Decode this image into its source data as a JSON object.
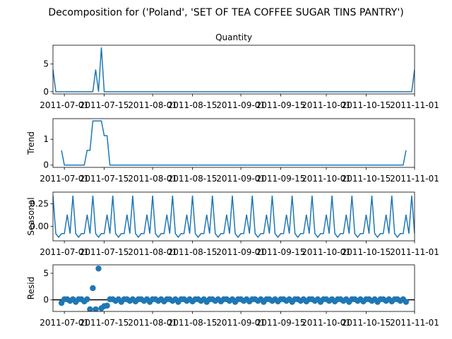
{
  "figure": {
    "suptitle": "Decomposition for ('Poland', 'SET OF TEA COFFEE SUGAR TINS PANTRY')"
  },
  "chart_data": [
    {
      "type": "line",
      "title": "Quantity",
      "ylabel": "",
      "color": "#1f77b4",
      "xlim": [
        "2011-06-27",
        "2011-11-01"
      ],
      "ylim": [
        -0.4,
        8.4
      ],
      "yticks": [
        0,
        5
      ],
      "x_tick_dates": [
        "2011-07-01",
        "2011-07-15",
        "2011-08-01",
        "2011-08-15",
        "2011-09-01",
        "2011-09-15",
        "2011-10-01",
        "2011-10-15",
        "2011-11-01"
      ],
      "x_tick_labels": [
        "2011-07-01",
        "2011-07-15",
        "2011-08-01",
        "2011-08-15",
        "2011-09-01",
        "2011-09-15",
        "2011-10-01",
        "2011-10-15",
        "2011-11-01"
      ],
      "points": [
        [
          "2011-06-27",
          4
        ],
        [
          "2011-06-28",
          0
        ],
        [
          "2011-07-11",
          0
        ],
        [
          "2011-07-12",
          4
        ],
        [
          "2011-07-13",
          0
        ],
        [
          "2011-07-14",
          8
        ],
        [
          "2011-07-15",
          0
        ],
        [
          "2011-10-31",
          0
        ],
        [
          "2011-11-01",
          4
        ]
      ]
    },
    {
      "type": "line",
      "title": "",
      "ylabel": "Trend",
      "color": "#1f77b4",
      "xlim": [
        "2011-06-27",
        "2011-11-01"
      ],
      "ylim": [
        -0.09,
        1.8
      ],
      "yticks": [
        0,
        1
      ],
      "x_tick_dates": [
        "2011-07-01",
        "2011-07-15",
        "2011-08-01",
        "2011-08-15",
        "2011-09-01",
        "2011-09-15",
        "2011-10-01",
        "2011-10-15",
        "2011-11-01"
      ],
      "x_tick_labels": [
        "2011-07-01",
        "2011-07-15",
        "2011-08-01",
        "2011-08-15",
        "2011-09-01",
        "2011-09-15",
        "2011-10-01",
        "2011-10-15",
        "2011-11-01"
      ],
      "points": [
        [
          "2011-06-30",
          0.57
        ],
        [
          "2011-07-01",
          0
        ],
        [
          "2011-07-08",
          0
        ],
        [
          "2011-07-09",
          0.57
        ],
        [
          "2011-07-10",
          0.57
        ],
        [
          "2011-07-11",
          1.71
        ],
        [
          "2011-07-14",
          1.71
        ],
        [
          "2011-07-15",
          1.14
        ],
        [
          "2011-07-16",
          1.14
        ],
        [
          "2011-07-17",
          0
        ],
        [
          "2011-10-28",
          0
        ],
        [
          "2011-10-29",
          0.57
        ]
      ]
    },
    {
      "type": "line",
      "title": "",
      "ylabel": "Seasonal",
      "color": "#1f77b4",
      "xlim": [
        "2011-06-27",
        "2011-11-01"
      ],
      "ylim": [
        -0.16,
        0.38
      ],
      "yticks": [
        0.25,
        0.0
      ],
      "ytick_labels": [
        "0.25",
        "0.00"
      ],
      "x_tick_dates": [
        "2011-07-01",
        "2011-07-15",
        "2011-08-01",
        "2011-08-15",
        "2011-09-01",
        "2011-09-15",
        "2011-10-01",
        "2011-10-15",
        "2011-11-01"
      ],
      "x_tick_labels": [
        "2011-07-01",
        "2011-07-15",
        "2011-08-01",
        "2011-08-15",
        "2011-09-01",
        "2011-09-15",
        "2011-10-01",
        "2011-10-15",
        "2011-11-01"
      ],
      "start": "2011-06-27",
      "end": "2011-11-01",
      "weekly_pattern": [
        0.34,
        -0.08,
        -0.12,
        -0.08,
        -0.08,
        0.13,
        -0.08
      ]
    },
    {
      "type": "scatter",
      "title": "",
      "ylabel": "Resid",
      "color": "#1f77b4",
      "xlim": [
        "2011-06-27",
        "2011-11-01"
      ],
      "ylim": [
        -2.2,
        6.6
      ],
      "yticks": [
        0,
        5
      ],
      "baseline": 0,
      "x_tick_dates": [
        "2011-07-01",
        "2011-07-15",
        "2011-08-01",
        "2011-08-15",
        "2011-09-01",
        "2011-09-15",
        "2011-10-01",
        "2011-10-15",
        "2011-11-01"
      ],
      "x_tick_labels": [
        "2011-07-01",
        "2011-07-15",
        "2011-08-01",
        "2011-08-15",
        "2011-09-01",
        "2011-09-15",
        "2011-10-01",
        "2011-10-15",
        "2011-11-01"
      ],
      "points": [
        [
          "2011-06-30",
          -0.6
        ],
        [
          "2011-07-01",
          0.1
        ],
        [
          "2011-07-02",
          0.1
        ],
        [
          "2011-07-03",
          -0.2
        ],
        [
          "2011-07-04",
          0.1
        ],
        [
          "2011-07-05",
          -0.4
        ],
        [
          "2011-07-06",
          0.1
        ],
        [
          "2011-07-07",
          0.1
        ],
        [
          "2011-07-08",
          -0.3
        ],
        [
          "2011-07-09",
          0.1
        ],
        [
          "2011-07-10",
          -1.8
        ],
        [
          "2011-07-11",
          2.2
        ],
        [
          "2011-07-12",
          -1.8
        ],
        [
          "2011-07-13",
          5.9
        ],
        [
          "2011-07-14",
          -1.6
        ],
        [
          "2011-07-15",
          -1.2
        ],
        [
          "2011-07-16",
          -1.1
        ],
        [
          "2011-07-17",
          0.1
        ],
        [
          "2011-07-18",
          0.1
        ],
        [
          "2011-07-19",
          -0.2
        ],
        [
          "2011-07-20",
          0.1
        ],
        [
          "2011-07-21",
          -0.4
        ],
        [
          "2011-07-22",
          0.1
        ],
        [
          "2011-07-23",
          0.1
        ],
        [
          "2011-07-24",
          -0.2
        ],
        [
          "2011-07-25",
          0.1
        ],
        [
          "2011-07-26",
          -0.3
        ],
        [
          "2011-07-27",
          0.1
        ],
        [
          "2011-07-28",
          0.1
        ],
        [
          "2011-07-29",
          -0.2
        ],
        [
          "2011-07-30",
          0.1
        ],
        [
          "2011-07-31",
          -0.4
        ],
        [
          "2011-08-01",
          0.1
        ],
        [
          "2011-08-02",
          0.1
        ],
        [
          "2011-08-03",
          -0.2
        ],
        [
          "2011-08-04",
          0.1
        ],
        [
          "2011-08-05",
          -0.3
        ],
        [
          "2011-08-06",
          0.1
        ],
        [
          "2011-08-07",
          0.1
        ],
        [
          "2011-08-08",
          -0.2
        ],
        [
          "2011-08-09",
          0.1
        ],
        [
          "2011-08-10",
          -0.4
        ],
        [
          "2011-08-11",
          0.1
        ],
        [
          "2011-08-12",
          0.1
        ],
        [
          "2011-08-13",
          -0.2
        ],
        [
          "2011-08-14",
          0.1
        ],
        [
          "2011-08-15",
          -0.3
        ],
        [
          "2011-08-16",
          0.1
        ],
        [
          "2011-08-17",
          0.1
        ],
        [
          "2011-08-18",
          -0.2
        ],
        [
          "2011-08-19",
          0.1
        ],
        [
          "2011-08-20",
          -0.4
        ],
        [
          "2011-08-21",
          0.1
        ],
        [
          "2011-08-22",
          0.1
        ],
        [
          "2011-08-23",
          -0.2
        ],
        [
          "2011-08-24",
          0.1
        ],
        [
          "2011-08-25",
          -0.3
        ],
        [
          "2011-08-26",
          0.1
        ],
        [
          "2011-08-27",
          0.1
        ],
        [
          "2011-08-28",
          -0.2
        ],
        [
          "2011-08-29",
          0.1
        ],
        [
          "2011-08-30",
          -0.4
        ],
        [
          "2011-08-31",
          0.1
        ],
        [
          "2011-09-01",
          0.1
        ],
        [
          "2011-09-02",
          -0.2
        ],
        [
          "2011-09-03",
          0.1
        ],
        [
          "2011-09-04",
          -0.3
        ],
        [
          "2011-09-05",
          0.1
        ],
        [
          "2011-09-06",
          0.1
        ],
        [
          "2011-09-07",
          -0.2
        ],
        [
          "2011-09-08",
          0.1
        ],
        [
          "2011-09-09",
          -0.4
        ],
        [
          "2011-09-10",
          0.1
        ],
        [
          "2011-09-11",
          0.1
        ],
        [
          "2011-09-12",
          -0.2
        ],
        [
          "2011-09-13",
          0.1
        ],
        [
          "2011-09-14",
          -0.3
        ],
        [
          "2011-09-15",
          0.1
        ],
        [
          "2011-09-16",
          0.1
        ],
        [
          "2011-09-17",
          -0.2
        ],
        [
          "2011-09-18",
          0.1
        ],
        [
          "2011-09-19",
          -0.4
        ],
        [
          "2011-09-20",
          0.1
        ],
        [
          "2011-09-21",
          0.1
        ],
        [
          "2011-09-22",
          -0.2
        ],
        [
          "2011-09-23",
          0.1
        ],
        [
          "2011-09-24",
          -0.3
        ],
        [
          "2011-09-25",
          0.1
        ],
        [
          "2011-09-26",
          0.1
        ],
        [
          "2011-09-27",
          -0.2
        ],
        [
          "2011-09-28",
          0.1
        ],
        [
          "2011-09-29",
          -0.4
        ],
        [
          "2011-09-30",
          0.1
        ],
        [
          "2011-10-01",
          0.1
        ],
        [
          "2011-10-02",
          -0.2
        ],
        [
          "2011-10-03",
          0.1
        ],
        [
          "2011-10-04",
          -0.3
        ],
        [
          "2011-10-05",
          0.1
        ],
        [
          "2011-10-06",
          0.1
        ],
        [
          "2011-10-07",
          -0.2
        ],
        [
          "2011-10-08",
          0.1
        ],
        [
          "2011-10-09",
          -0.4
        ],
        [
          "2011-10-10",
          0.1
        ],
        [
          "2011-10-11",
          0.1
        ],
        [
          "2011-10-12",
          -0.2
        ],
        [
          "2011-10-13",
          0.1
        ],
        [
          "2011-10-14",
          -0.3
        ],
        [
          "2011-10-15",
          0.1
        ],
        [
          "2011-10-16",
          0.1
        ],
        [
          "2011-10-17",
          -0.2
        ],
        [
          "2011-10-18",
          0.1
        ],
        [
          "2011-10-19",
          -0.4
        ],
        [
          "2011-10-20",
          0.1
        ],
        [
          "2011-10-21",
          0.1
        ],
        [
          "2011-10-22",
          -0.2
        ],
        [
          "2011-10-23",
          0.1
        ],
        [
          "2011-10-24",
          -0.3
        ],
        [
          "2011-10-25",
          0.1
        ],
        [
          "2011-10-26",
          0.1
        ],
        [
          "2011-10-27",
          -0.2
        ],
        [
          "2011-10-28",
          0.1
        ],
        [
          "2011-10-29",
          -0.4
        ]
      ]
    }
  ]
}
